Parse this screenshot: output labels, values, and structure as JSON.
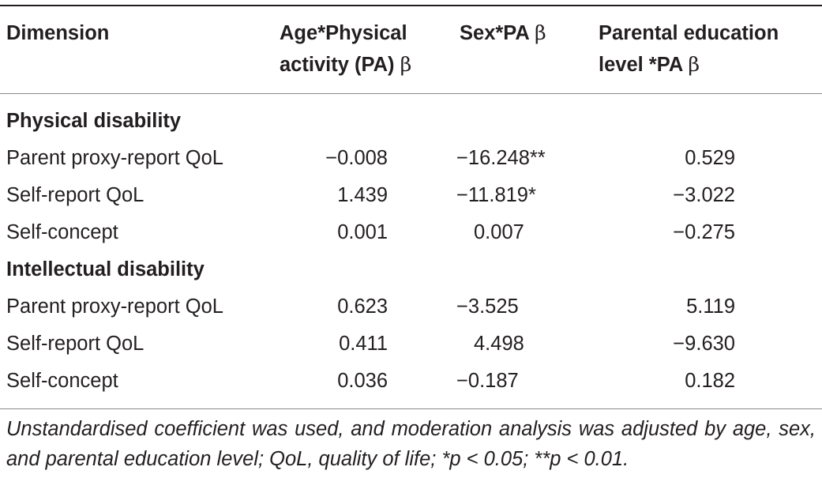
{
  "table": {
    "headers": {
      "dimension": "Dimension",
      "age_pa": [
        "Age*Physical",
        "activity (PA) β"
      ],
      "sex_pa": "Sex*PA β",
      "parent_pa": [
        "Parental education",
        "level *PA β"
      ]
    },
    "sections": [
      {
        "title": "Physical disability",
        "rows": [
          {
            "label": "Parent proxy-report QoL",
            "age": "−0.008",
            "sex": "−16.248**",
            "parent": "0.529"
          },
          {
            "label": "Self-report QoL",
            "age": "1.439",
            "sex": "−11.819*",
            "parent": "−3.022"
          },
          {
            "label": "Self-concept",
            "age": "0.001",
            "sex": "0.007",
            "parent": "−0.275"
          }
        ]
      },
      {
        "title": "Intellectual disability",
        "rows": [
          {
            "label": "Parent proxy-report QoL",
            "age": "0.623",
            "sex": "−3.525",
            "parent": "5.119"
          },
          {
            "label": "Self-report QoL",
            "age": "0.411",
            "sex": "4.498",
            "parent": "−9.630"
          },
          {
            "label": "Self-concept",
            "age": "0.036",
            "sex": "−0.187",
            "parent": "0.182"
          }
        ]
      }
    ],
    "footnote": "Unstandardised coefficient was used, and moderation analysis was adjusted by age, sex, and parental education level; QoL, quality of life; *p < 0.05; **p < 0.01."
  }
}
